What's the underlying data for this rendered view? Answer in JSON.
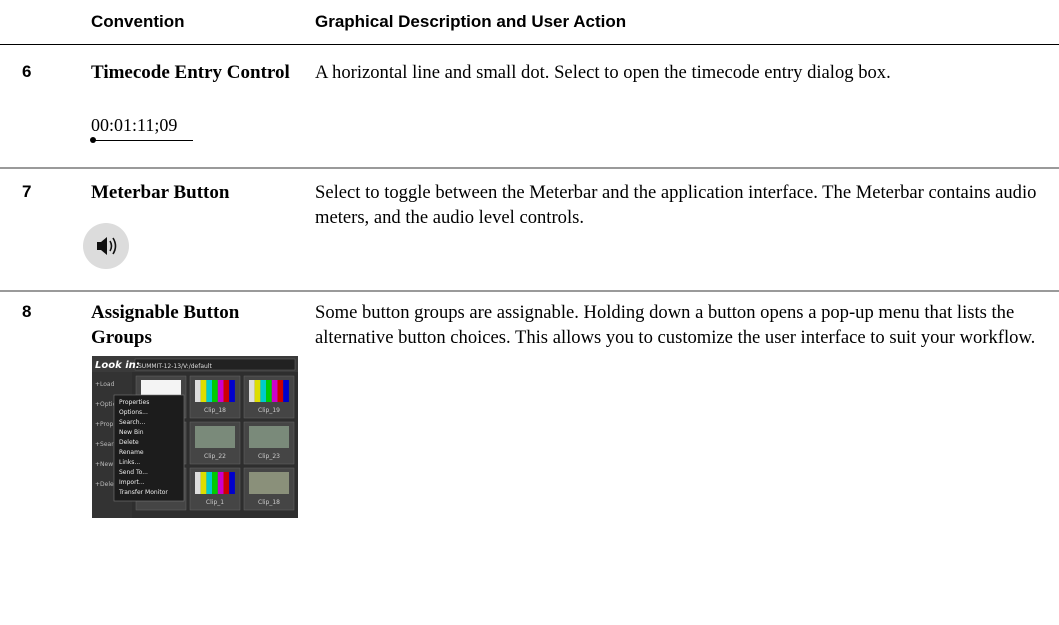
{
  "table": {
    "header": [
      "Convention",
      "Graphical Description and User Action"
    ],
    "rows": [
      {
        "number": "6",
        "convention": "Timecode Entry Control",
        "timecode": "00:01:11;09",
        "description": "A horizontal line and small dot. Select to open the timecode entry dialog box."
      },
      {
        "number": "7",
        "convention": "Meterbar Button",
        "description": "Select to toggle between the Meterbar and the application interface. The Meterbar contains audio meters, and the audio level controls."
      },
      {
        "number": "8",
        "convention": "Assignable Button Groups",
        "description": "Some button groups are assignable. Holding down a button opens a pop-up menu that lists the alternative button choices. This allows you to customize the user interface to suit your workflow.",
        "screenshot": {
          "look_in": "Look in:",
          "path": "SUMMIT-12-13/V:/default",
          "side_buttons": [
            "+Load",
            "+Optio",
            "+Prop",
            "+Sear",
            "+New",
            "+Dele"
          ],
          "menu": [
            "Properties",
            "Options...",
            "Search...",
            "New Bin",
            "Delete",
            "Rename",
            "Links...",
            "Send To...",
            "Import...",
            "Transfer Monitor"
          ],
          "clips": [
            "Clip_18",
            "Clip_19",
            "Clip_22",
            "Clip_23",
            "Clip_1",
            "Clip_18"
          ]
        }
      }
    ]
  }
}
